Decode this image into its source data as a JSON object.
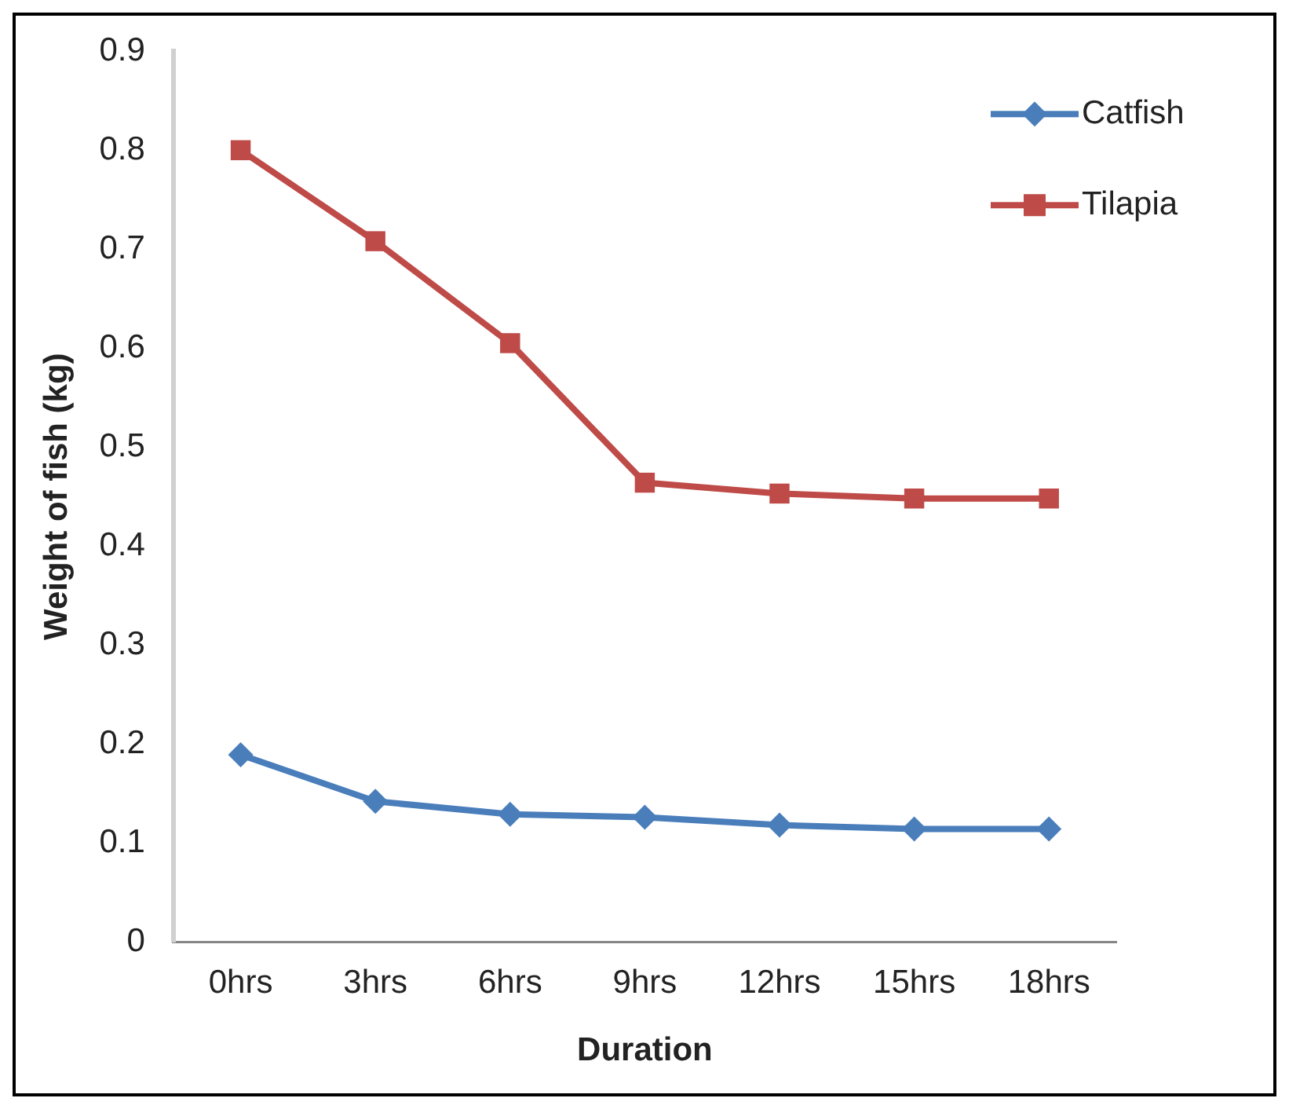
{
  "chart_data": {
    "type": "line",
    "xlabel": "Duration",
    "ylabel": "Weight of fish (kg)",
    "categories": [
      "0hrs",
      "3hrs",
      "6hrs",
      "9hrs",
      "12hrs",
      "15hrs",
      "18hrs"
    ],
    "series": [
      {
        "name": "Catfish",
        "color": "#4a7ebb",
        "marker": "diamond",
        "values": [
          0.189,
          0.142,
          0.129,
          0.126,
          0.118,
          0.114,
          0.114
        ]
      },
      {
        "name": "Tilapia",
        "color": "#be4b48",
        "marker": "square",
        "values": [
          0.8,
          0.708,
          0.605,
          0.464,
          0.453,
          0.448,
          0.448
        ]
      }
    ],
    "ylim": [
      0,
      0.9
    ],
    "yticks": [
      0,
      0.1,
      0.2,
      0.3,
      0.4,
      0.5,
      0.6,
      0.7,
      0.8,
      0.9
    ],
    "grid": false,
    "legend": "top right",
    "line_style": "solid"
  }
}
